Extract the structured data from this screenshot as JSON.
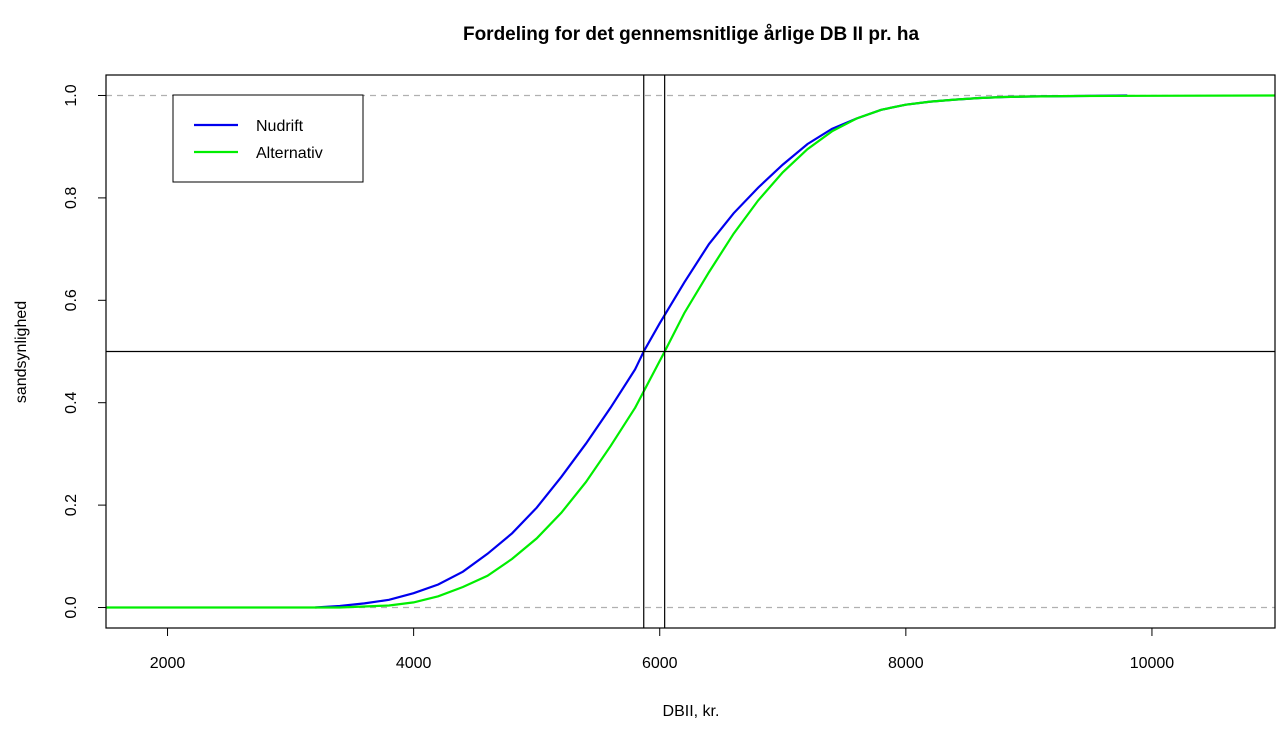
{
  "chart_data": {
    "type": "line",
    "title": "Fordeling for det gennemsnitlige årlige DB II pr. ha",
    "xlabel": "DBII, kr.",
    "ylabel": "sandsynlighed",
    "xlim": [
      1500,
      11000
    ],
    "ylim": [
      -0.04,
      1.04
    ],
    "x_ticks": [
      2000,
      4000,
      6000,
      8000,
      10000
    ],
    "y_ticks": [
      0.0,
      0.2,
      0.4,
      0.6,
      0.8,
      1.0
    ],
    "x_tick_labels": [
      "2000",
      "4000",
      "6000",
      "8000",
      "10000"
    ],
    "y_tick_labels": [
      "0.0",
      "0.2",
      "0.4",
      "0.6",
      "0.8",
      "1.0"
    ],
    "grid": false,
    "legend_position": "top-left",
    "reference_lines": {
      "horizontal_dashed": [
        0.0,
        1.0
      ],
      "horizontal_solid": [
        0.5
      ],
      "vertical_solid": [
        5870,
        6040
      ]
    },
    "series": [
      {
        "name": "Nudrift",
        "color": "#0000ee",
        "x": [
          3200,
          3400,
          3600,
          3800,
          4000,
          4200,
          4400,
          4600,
          4800,
          5000,
          5200,
          5400,
          5600,
          5800,
          5870,
          6000,
          6200,
          6400,
          6600,
          6800,
          7000,
          7200,
          7400,
          7600,
          7800,
          8000,
          8200,
          8400,
          8600,
          8800,
          9000,
          9400,
          9800
        ],
        "y": [
          0.0,
          0.003,
          0.008,
          0.015,
          0.028,
          0.045,
          0.07,
          0.105,
          0.145,
          0.195,
          0.255,
          0.32,
          0.39,
          0.465,
          0.5,
          0.555,
          0.635,
          0.71,
          0.77,
          0.82,
          0.865,
          0.905,
          0.935,
          0.955,
          0.972,
          0.982,
          0.988,
          0.992,
          0.995,
          0.997,
          0.998,
          0.999,
          1.0
        ]
      },
      {
        "name": "Alternativ",
        "color": "#00ee00",
        "x": [
          1500,
          3400,
          3600,
          3800,
          4000,
          4200,
          4400,
          4600,
          4800,
          5000,
          5200,
          5400,
          5600,
          5800,
          6040,
          6200,
          6400,
          6600,
          6800,
          7000,
          7200,
          7400,
          7600,
          7800,
          8000,
          8200,
          8400,
          8600,
          8800,
          9000,
          9400,
          11000
        ],
        "y": [
          0.0,
          0.0,
          0.002,
          0.004,
          0.01,
          0.022,
          0.04,
          0.062,
          0.095,
          0.135,
          0.185,
          0.245,
          0.315,
          0.39,
          0.5,
          0.575,
          0.655,
          0.73,
          0.795,
          0.85,
          0.895,
          0.93,
          0.955,
          0.972,
          0.982,
          0.988,
          0.992,
          0.995,
          0.997,
          0.998,
          0.999,
          1.0
        ]
      }
    ]
  }
}
